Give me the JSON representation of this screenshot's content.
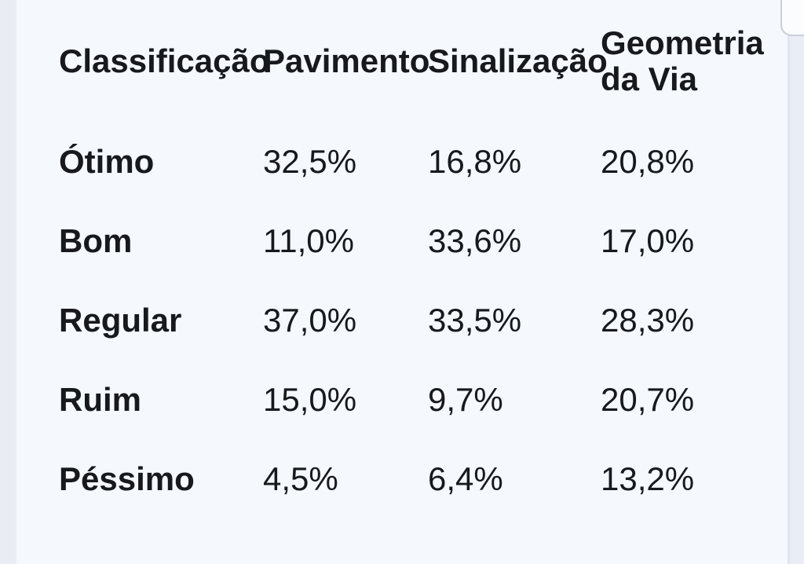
{
  "page": {
    "background_color": "#f5f8fc",
    "left_gutter_color": "#e9edf3",
    "right_gutter_color": "#e9eef6",
    "text_color": "#17191d"
  },
  "table": {
    "headers": [
      "Classificação",
      "Pavimento",
      "Sinalização",
      "Geometria da Via"
    ],
    "rows": [
      {
        "label": "Ótimo",
        "values": [
          "32,5%",
          "16,8%",
          "20,8%"
        ]
      },
      {
        "label": "Bom",
        "values": [
          "11,0%",
          "33,6%",
          "17,0%"
        ]
      },
      {
        "label": "Regular",
        "values": [
          "37,0%",
          "33,5%",
          "28,3%"
        ]
      },
      {
        "label": "Ruim",
        "values": [
          "15,0%",
          "9,7%",
          "20,7%"
        ]
      },
      {
        "label": "Péssimo",
        "values": [
          "4,5%",
          "6,4%",
          "13,2%"
        ]
      }
    ]
  }
}
